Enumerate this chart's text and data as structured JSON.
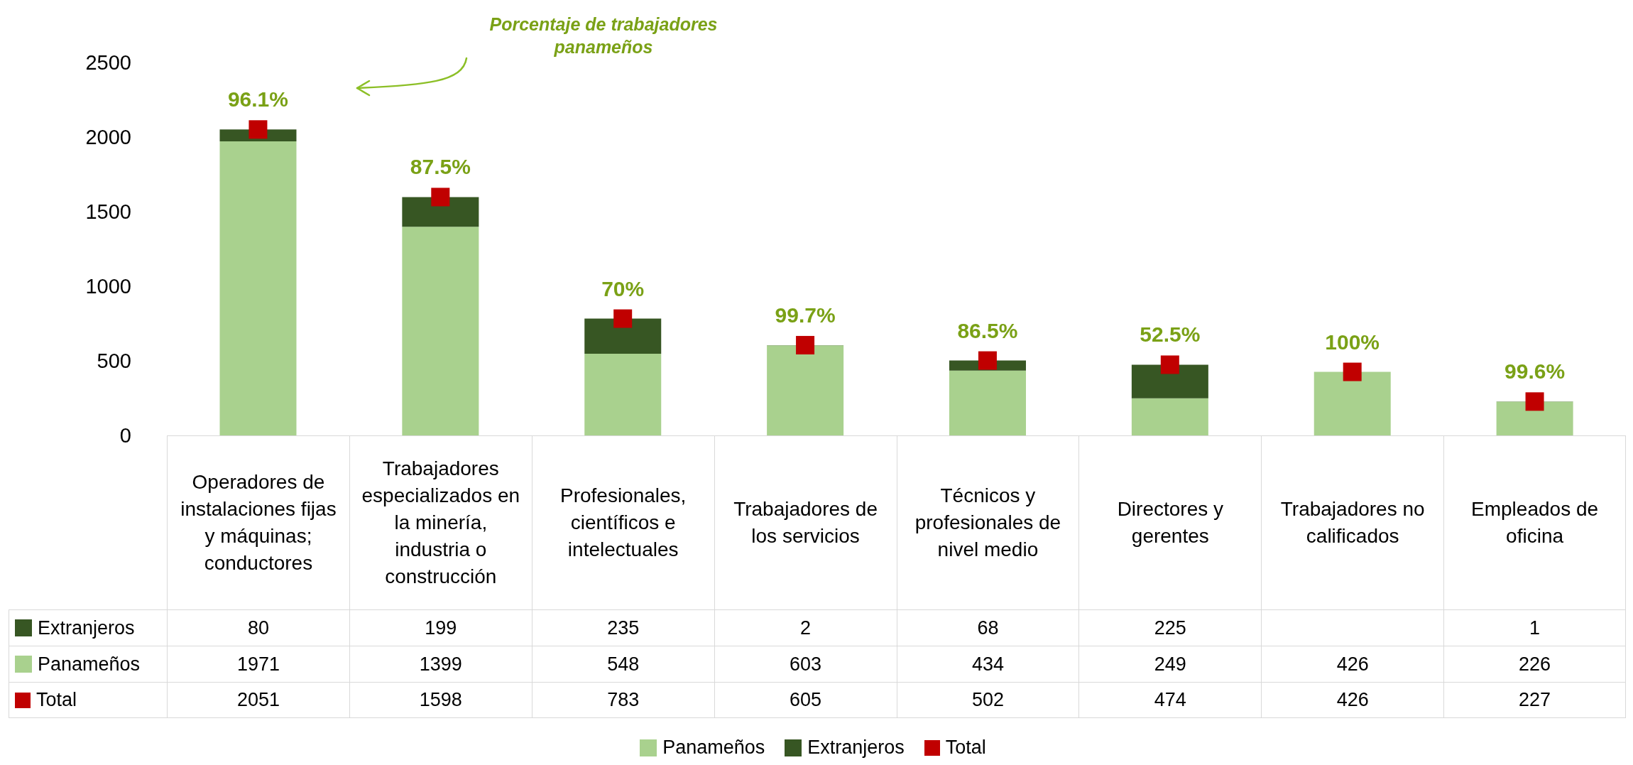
{
  "chart_data": {
    "type": "bar",
    "stacked": true,
    "categories": [
      "Operadores de instalaciones fijas y máquinas; conductores",
      "Trabajadores especializados en la minería, industria o construcción",
      "Profesionales, científicos e intelectuales",
      "Trabajadores de los servicios",
      "Técnicos y profesionales de nivel medio",
      "Directores y gerentes",
      "Trabajadores no calificados",
      "Empleados de oficina"
    ],
    "series": [
      {
        "name": "Panameños",
        "color": "#a9d18e",
        "values": [
          1971,
          1399,
          548,
          603,
          434,
          249,
          426,
          226
        ]
      },
      {
        "name": "Extranjeros",
        "color": "#375623",
        "values": [
          80,
          199,
          235,
          2,
          68,
          225,
          null,
          1
        ]
      },
      {
        "name": "Total",
        "type": "scatter",
        "color": "#c00000",
        "x": [
          "Operadores de instalaciones fijas y máquinas; conductores",
          "Trabajadores especializados en la minería, industria o construcción",
          "Profesionales, científicos e intelectuales",
          "Trabajadores de los servicios",
          "Técnicos y profesionales de nivel medio",
          "Directores y gerentes",
          "Trabajadores no calificados",
          "Empleados de oficina"
        ],
        "values": [
          2051,
          1598,
          783,
          605,
          502,
          474,
          426,
          227
        ]
      }
    ],
    "ylim": [
      0,
      2500
    ],
    "yticks": [
      0,
      500,
      1000,
      1500,
      2000,
      2500
    ],
    "grid": false,
    "legend": "bottom",
    "marker": "square",
    "data_labels": true,
    "annotations": [
      "Porcentaje de trabajadores panameños",
      {
        "text": "96.1%",
        "x": "Operadores de instalaciones fijas y máquinas; conductores",
        "y": 2051
      },
      {
        "text": "87.5%",
        "x": "Trabajadores especializados en la minería, industria o construcción",
        "y": 1598
      },
      {
        "text": "70%",
        "x": "Profesionales, científicos e intelectuales",
        "y": 783
      },
      {
        "text": "99.7%",
        "x": "Trabajadores de los servicios",
        "y": 605
      },
      {
        "text": "86.5%",
        "x": "Técnicos y profesionales de nivel medio",
        "y": 502
      },
      {
        "text": "52.5%",
        "x": "Directores y gerentes",
        "y": 474
      },
      {
        "text": "100%",
        "x": "Trabajadores no calificados",
        "y": 426
      },
      {
        "text": "99.6%",
        "x": "Empleados de oficina",
        "y": 227
      }
    ]
  }
}
